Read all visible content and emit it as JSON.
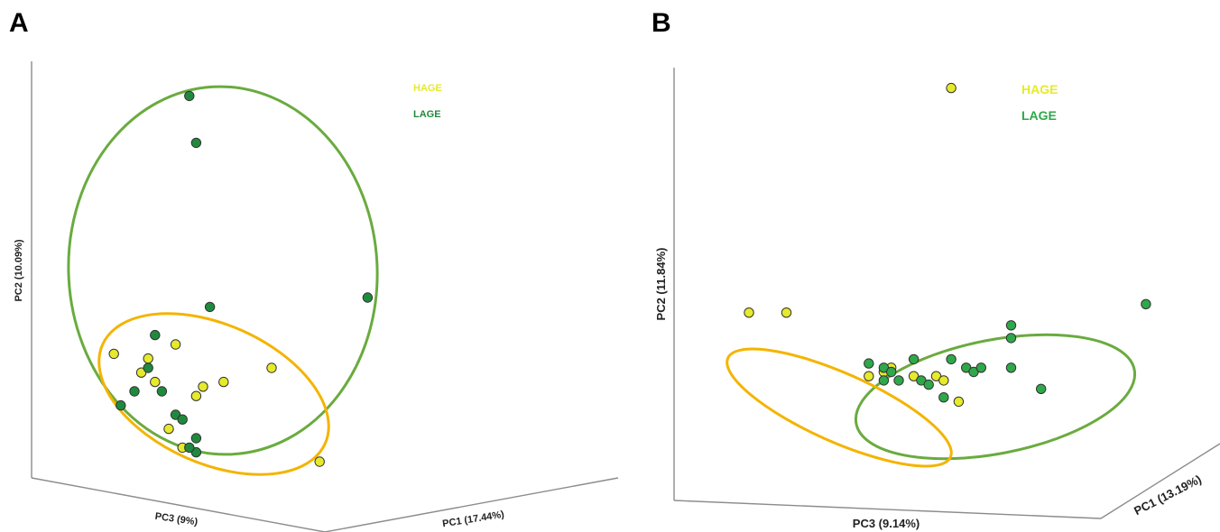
{
  "colors": {
    "HAGE": "#e6ea2a",
    "LAGE": "#1f8a3e",
    "LAGE_B": "#2ea84a",
    "ellipse_HAGE": "#f4b400",
    "ellipse_LAGE": "#6aab3f"
  },
  "chart_data": [
    {
      "panel": "A",
      "type": "scatter",
      "projection": "3d",
      "axes": [
        "PC1 (17.44%)",
        "PC2 (10.09%)",
        "PC3 (9%)"
      ],
      "legend": [
        "HAGE",
        "LAGE"
      ],
      "legend_position": "top-right",
      "series": [
        {
          "name": "HAGE",
          "points": [
            [
              1.2,
              3.8
            ],
            [
              2.1,
              4.0
            ],
            [
              1.7,
              3.7
            ],
            [
              1.6,
              3.4
            ],
            [
              1.8,
              3.2
            ],
            [
              2.5,
              3.1
            ],
            [
              2.4,
              2.9
            ],
            [
              2.8,
              3.2
            ],
            [
              3.5,
              3.5
            ],
            [
              2.0,
              2.2
            ],
            [
              2.2,
              1.8
            ],
            [
              4.2,
              1.5
            ]
          ]
        },
        {
          "name": "LAGE",
          "points": [
            [
              2.3,
              9.3
            ],
            [
              2.4,
              8.3
            ],
            [
              2.6,
              4.8
            ],
            [
              4.9,
              5.0
            ],
            [
              1.8,
              4.2
            ],
            [
              1.7,
              3.5
            ],
            [
              1.3,
              2.7
            ],
            [
              1.5,
              3.0
            ],
            [
              1.9,
              3.0
            ],
            [
              2.1,
              2.5
            ],
            [
              2.2,
              2.4
            ],
            [
              2.4,
              2.0
            ],
            [
              2.4,
              1.7
            ],
            [
              2.3,
              1.8
            ]
          ]
        }
      ]
    },
    {
      "panel": "B",
      "type": "scatter",
      "projection": "3d",
      "axes": [
        "PC1 (13.19%)",
        "PC2 (11.84%)",
        "PC3 (9.14%)"
      ],
      "legend": [
        "HAGE",
        "LAGE"
      ],
      "legend_position": "top-right",
      "series": [
        {
          "name": "HAGE",
          "points": [
            [
              3.7,
              9.2
            ],
            [
              1.0,
              3.9
            ],
            [
              1.5,
              3.9
            ],
            [
              2.6,
              2.4
            ],
            [
              2.8,
              2.5
            ],
            [
              2.9,
              2.6
            ],
            [
              3.2,
              2.4
            ],
            [
              3.5,
              2.4
            ],
            [
              3.6,
              2.3
            ],
            [
              3.8,
              1.8
            ]
          ]
        },
        {
          "name": "LAGE",
          "points": [
            [
              2.6,
              2.7
            ],
            [
              2.8,
              2.6
            ],
            [
              2.9,
              2.5
            ],
            [
              2.8,
              2.3
            ],
            [
              3.0,
              2.3
            ],
            [
              3.3,
              2.3
            ],
            [
              3.4,
              2.2
            ],
            [
              3.7,
              2.8
            ],
            [
              3.9,
              2.6
            ],
            [
              4.0,
              2.5
            ],
            [
              4.1,
              2.6
            ],
            [
              4.5,
              2.6
            ],
            [
              4.5,
              3.3
            ],
            [
              4.5,
              3.6
            ],
            [
              4.9,
              2.1
            ],
            [
              3.6,
              1.9
            ],
            [
              3.2,
              2.8
            ],
            [
              6.3,
              4.1
            ]
          ]
        }
      ]
    }
  ]
}
